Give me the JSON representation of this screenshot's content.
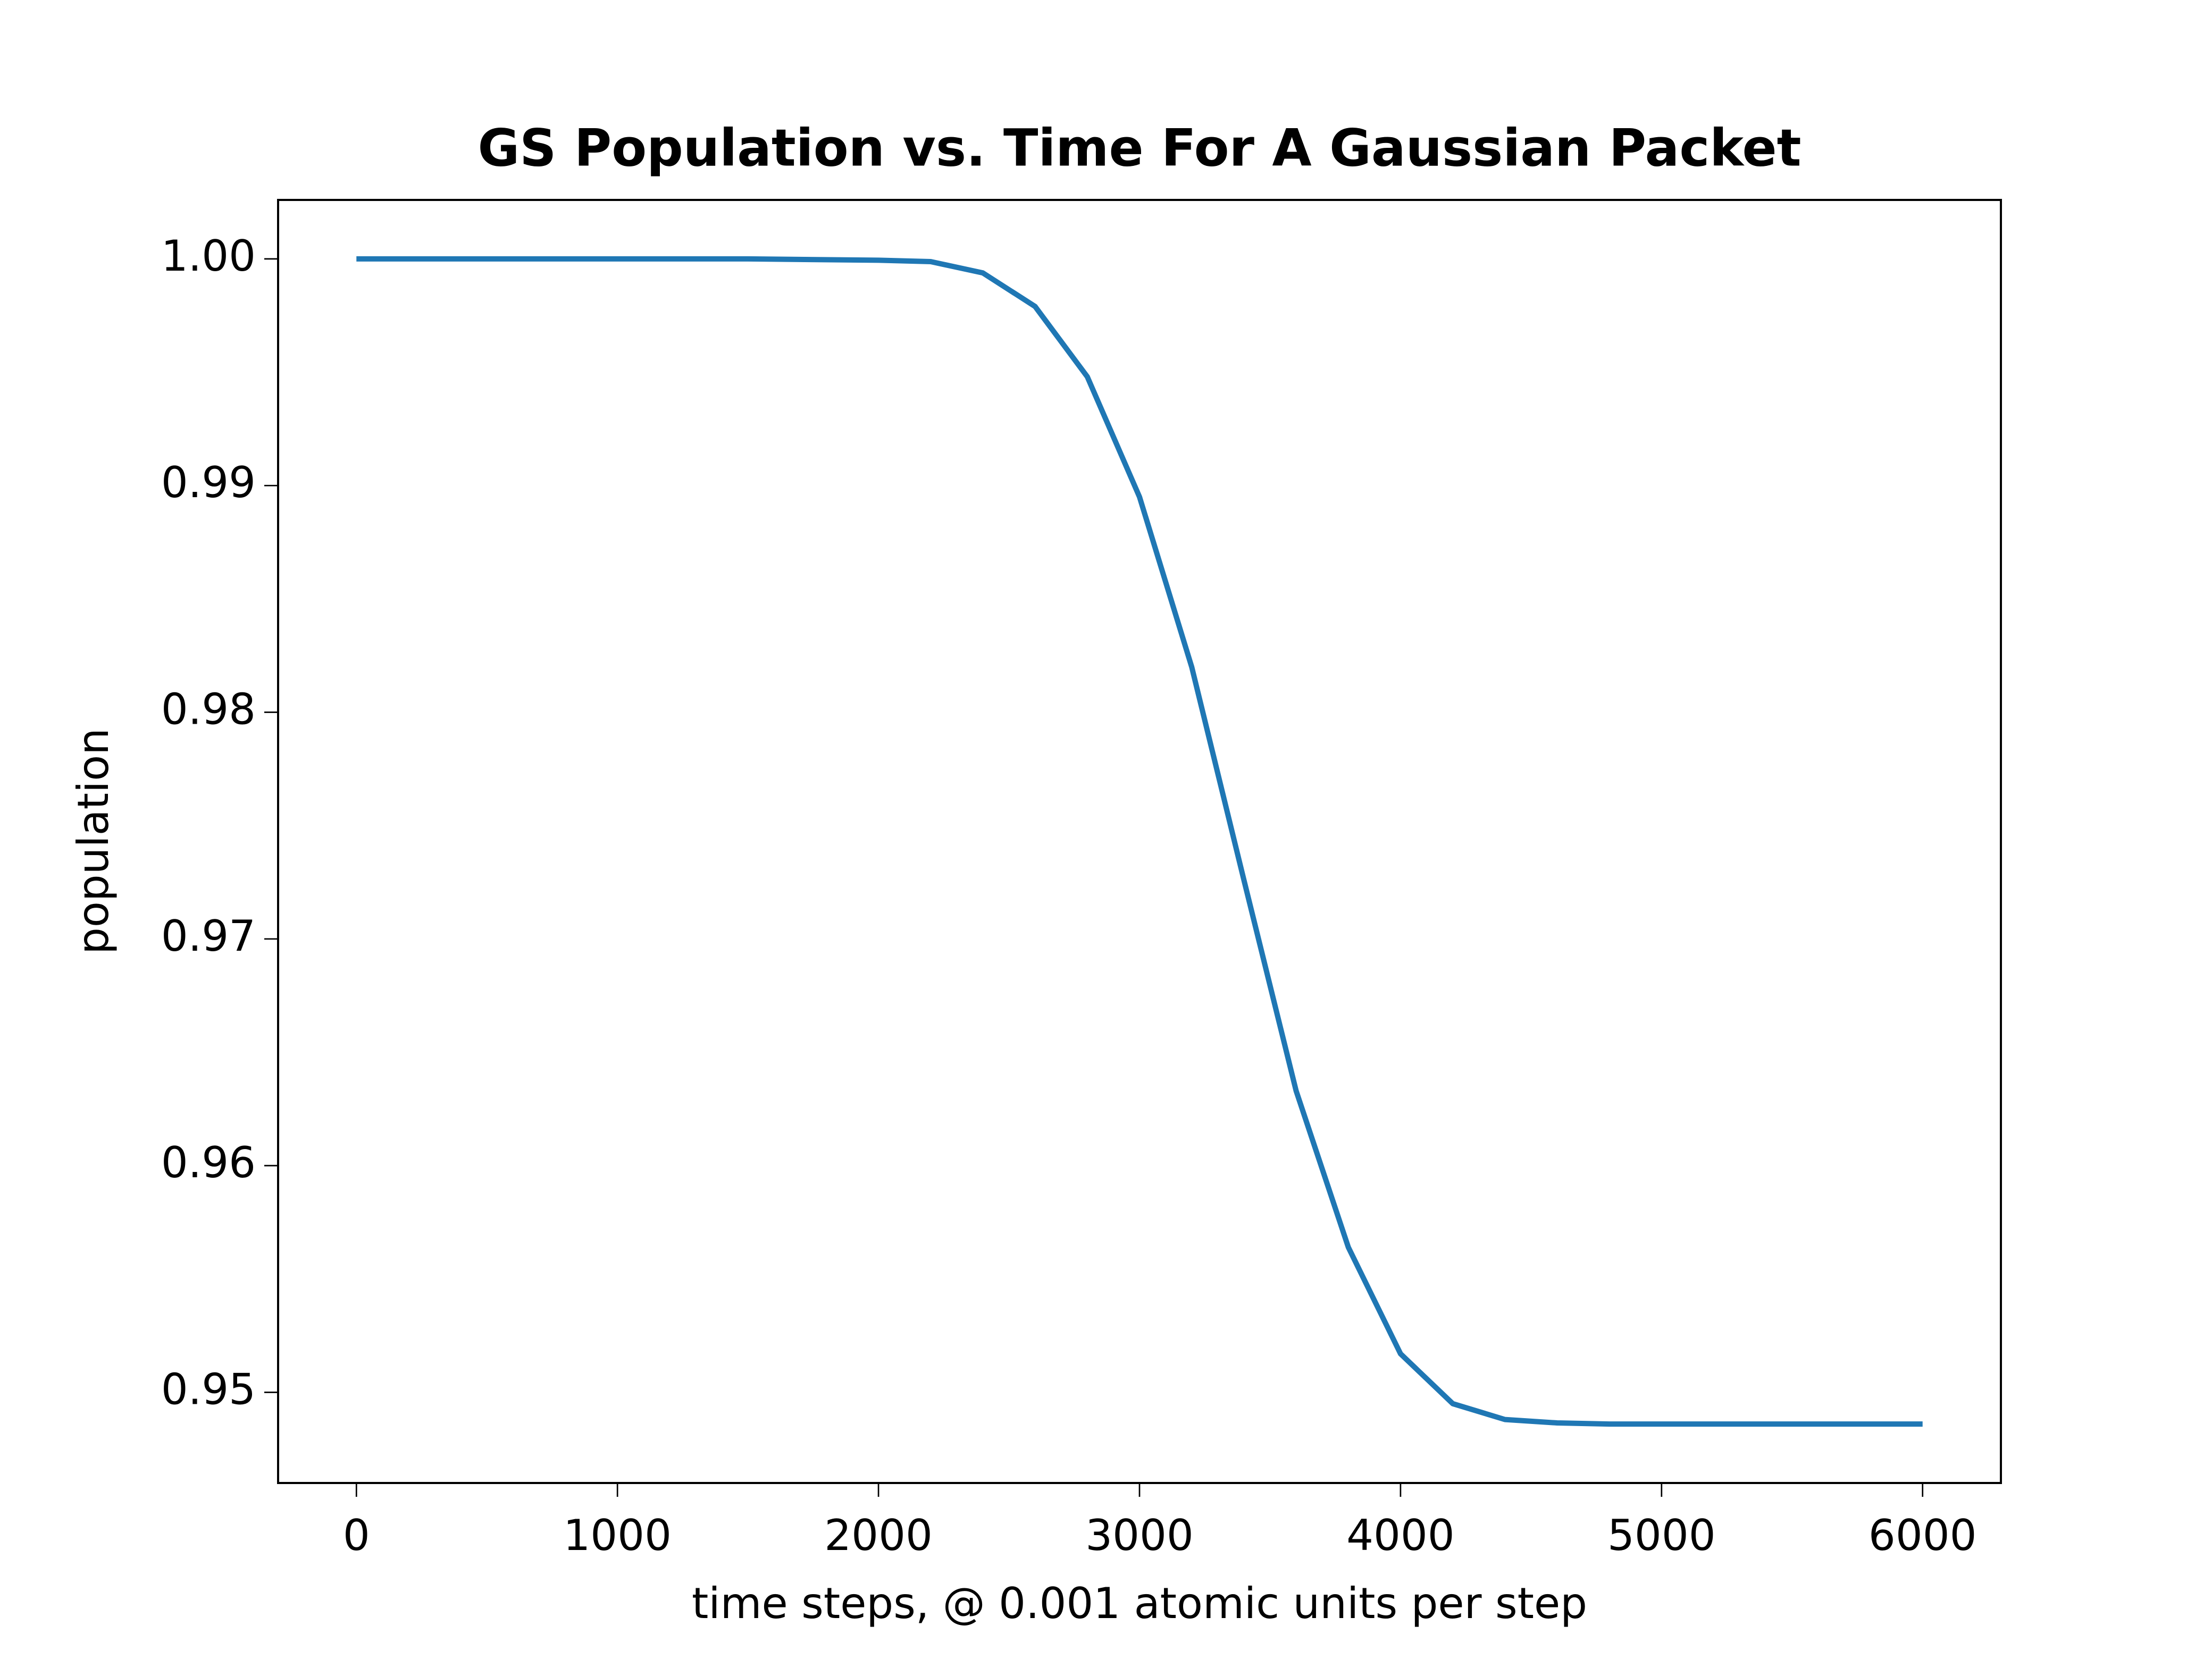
{
  "chart_data": {
    "type": "line",
    "title": "GS Population vs. Time For A Gaussian Packet",
    "x_label": "time steps, @ 0.001 atomic units per step",
    "y_label": "population",
    "x": [
      0,
      500,
      1000,
      1500,
      2000,
      2200,
      2400,
      2600,
      2800,
      3000,
      3200,
      3400,
      3600,
      3800,
      4000,
      4200,
      4400,
      4600,
      4800,
      5000,
      5500,
      6000
    ],
    "series": [
      {
        "color": "#1f77b4",
        "values": [
          1.0,
          1.0,
          1.0,
          1.0,
          0.99994,
          0.99988,
          0.99938,
          0.9979,
          0.9948,
          0.9895,
          0.982,
          0.9726,
          0.9633,
          0.9564,
          0.9517,
          0.9495,
          0.9488,
          0.94865,
          0.9486,
          0.9486,
          0.9486,
          0.9486
        ]
      }
    ],
    "xlim": [
      -300,
      6300
    ],
    "ylim": [
      0.946,
      1.0026
    ],
    "xticks": [
      0,
      1000,
      2000,
      3000,
      4000,
      5000,
      6000
    ],
    "yticks": [
      {
        "value": 1.0,
        "label": "1.00"
      },
      0.99,
      0.98,
      0.97,
      0.96,
      0.95
    ],
    "grid": false
  }
}
